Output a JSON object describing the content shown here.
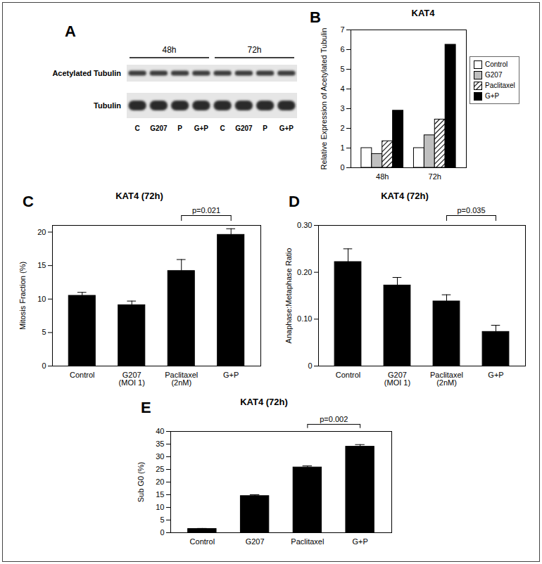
{
  "chart_data": [
    {
      "panel": "A",
      "type": "blot",
      "column_groups": [
        "48h",
        "72h"
      ],
      "rows": [
        "Acetylated Tubulin",
        "Tubulin"
      ],
      "lanes": [
        "C",
        "G207",
        "P",
        "G+P",
        "C",
        "G207",
        "P",
        "G+P"
      ]
    },
    {
      "panel": "B",
      "type": "grouped_bar",
      "title": "KAT4",
      "y_label": "Relative Expression of Acetylated Tubulin",
      "categories": [
        "48h",
        "72h"
      ],
      "series": [
        {
          "name": "Control",
          "color": "#ffffff",
          "values": [
            1.0,
            1.0
          ]
        },
        {
          "name": "G207",
          "color": "#bfbfbf",
          "values": [
            0.7,
            1.65
          ]
        },
        {
          "name": "Paclitaxel",
          "color": "#000000",
          "marker": "hatch",
          "values": [
            1.35,
            2.45
          ]
        },
        {
          "name": "G+P",
          "color": "#000000",
          "values": [
            2.9,
            6.25
          ]
        }
      ],
      "ylim": [
        0,
        7
      ],
      "yticks": [
        0,
        1,
        2,
        3,
        4,
        5,
        6,
        7
      ],
      "legend": "right"
    },
    {
      "panel": "C",
      "type": "bar",
      "title": "KAT4 (72h)",
      "y_label": "Mitosis Fraction (%)",
      "categories": [
        "Control",
        "G207\n(MOI 1)",
        "Paclitaxel\n(2nM)",
        "G+P"
      ],
      "values": [
        10.5,
        9.1,
        14.2,
        19.6
      ],
      "errors": [
        0.5,
        0.6,
        1.7,
        0.9
      ],
      "color": "#000000",
      "ylim": [
        0,
        21
      ],
      "yticks": [
        0,
        5,
        10,
        15,
        20
      ],
      "annotations": [
        {
          "text": "p=0.021",
          "between": [
            "Paclitaxel\n(2nM)",
            "G+P"
          ]
        }
      ]
    },
    {
      "panel": "D",
      "type": "bar",
      "title": "KAT4 (72h)",
      "y_label": "Anaphase:Metaphase Ratio",
      "categories": [
        "Control",
        "G207\n(MOI 1)",
        "Paclitaxel\n(2nM)",
        "G+P"
      ],
      "values": [
        0.222,
        0.172,
        0.138,
        0.073
      ],
      "errors": [
        0.028,
        0.017,
        0.014,
        0.014
      ],
      "color": "#000000",
      "ylim": [
        0,
        0.3
      ],
      "yticks": [
        0,
        {
          "value": 0.1,
          "label": "0.10"
        },
        {
          "value": 0.2,
          "label": "0.20"
        },
        {
          "value": 0.3,
          "label": "0.30"
        }
      ],
      "annotations": [
        {
          "text": "p=0.035",
          "between": [
            "Paclitaxel\n(2nM)",
            "G+P"
          ]
        }
      ]
    },
    {
      "panel": "E",
      "type": "bar",
      "title": "KAT4 (72h)",
      "y_label": "Sub G0 (%)",
      "categories": [
        "Control",
        "G207",
        "Paclitaxel",
        "G+P"
      ],
      "values": [
        1.5,
        14.5,
        25.8,
        34.0
      ],
      "errors": [
        0.2,
        0.5,
        0.6,
        0.8
      ],
      "color": "#000000",
      "ylim": [
        0,
        40
      ],
      "yticks": [
        0,
        5,
        10,
        15,
        20,
        25,
        30,
        35,
        40
      ],
      "annotations": [
        {
          "text": "p=0.002",
          "between": [
            "Paclitaxel",
            "G+P"
          ]
        }
      ]
    }
  ]
}
